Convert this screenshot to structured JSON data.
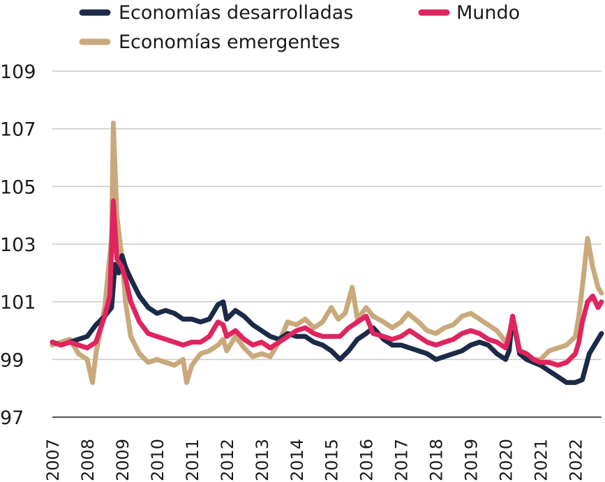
{
  "chart_data": {
    "type": "line",
    "title": "",
    "xlabel": "",
    "ylabel": "",
    "ylim": [
      97,
      110
    ],
    "xlim": [
      2007,
      2022.75
    ],
    "y_ticks": [
      97,
      99,
      101,
      103,
      105,
      107,
      109
    ],
    "x_tick_labels": [
      "2007",
      "2008",
      "2009",
      "2010",
      "2011",
      "2012",
      "2013",
      "2014",
      "2015",
      "2016",
      "2017",
      "2018",
      "2019",
      "2020",
      "2021",
      "2022"
    ],
    "grid": "horizontal",
    "legend_placement": "top",
    "legend": [
      {
        "label": "Economías desarrolladas",
        "series": "desarrolladas"
      },
      {
        "label": "Mundo",
        "series": "mundo"
      },
      {
        "label": "Economías emergentes",
        "series": "emergentes"
      }
    ],
    "series": [
      {
        "name": "Economías desarrolladas",
        "key": "desarrolladas",
        "color": "#1b2a47",
        "x": [
          2007.0,
          2007.25,
          2007.5,
          2007.75,
          2008.0,
          2008.25,
          2008.5,
          2008.7,
          2008.8,
          2008.9,
          2009.0,
          2009.1,
          2009.25,
          2009.5,
          2009.75,
          2010.0,
          2010.25,
          2010.5,
          2010.75,
          2011.0,
          2011.25,
          2011.5,
          2011.75,
          2011.9,
          2012.0,
          2012.25,
          2012.5,
          2012.75,
          2013.0,
          2013.25,
          2013.5,
          2013.75,
          2014.0,
          2014.25,
          2014.5,
          2014.75,
          2015.0,
          2015.25,
          2015.5,
          2015.75,
          2016.0,
          2016.2,
          2016.5,
          2016.75,
          2017.0,
          2017.25,
          2017.5,
          2017.75,
          2018.0,
          2018.25,
          2018.5,
          2018.75,
          2019.0,
          2019.25,
          2019.5,
          2019.75,
          2020.0,
          2020.1,
          2020.2,
          2020.4,
          2020.6,
          2020.8,
          2021.0,
          2021.25,
          2021.5,
          2021.75,
          2022.0,
          2022.2,
          2022.4,
          2022.6,
          2022.75
        ],
        "y": [
          99.6,
          99.5,
          99.6,
          99.7,
          99.8,
          100.2,
          100.5,
          100.8,
          102.3,
          102.0,
          102.6,
          102.2,
          101.8,
          101.2,
          100.8,
          100.6,
          100.7,
          100.6,
          100.4,
          100.4,
          100.3,
          100.4,
          100.9,
          101.0,
          100.4,
          100.7,
          100.5,
          100.2,
          100.0,
          99.8,
          99.7,
          99.9,
          99.8,
          99.8,
          99.6,
          99.5,
          99.3,
          99.0,
          99.3,
          99.7,
          99.9,
          100.1,
          99.7,
          99.5,
          99.5,
          99.4,
          99.3,
          99.2,
          99.0,
          99.1,
          99.2,
          99.3,
          99.5,
          99.6,
          99.5,
          99.2,
          99.0,
          99.3,
          100.5,
          99.2,
          99.0,
          98.9,
          98.8,
          98.6,
          98.4,
          98.2,
          98.2,
          98.3,
          99.2,
          99.6,
          99.9
        ]
      },
      {
        "name": "Mundo",
        "key": "mundo",
        "color": "#e0245e",
        "x": [
          2007.0,
          2007.25,
          2007.5,
          2007.75,
          2008.0,
          2008.25,
          2008.5,
          2008.65,
          2008.75,
          2008.85,
          2009.0,
          2009.1,
          2009.25,
          2009.5,
          2009.75,
          2010.0,
          2010.25,
          2010.5,
          2010.75,
          2011.0,
          2011.25,
          2011.5,
          2011.75,
          2011.9,
          2012.0,
          2012.25,
          2012.5,
          2012.75,
          2013.0,
          2013.25,
          2013.5,
          2013.75,
          2014.0,
          2014.25,
          2014.5,
          2014.75,
          2015.0,
          2015.25,
          2015.5,
          2015.75,
          2016.0,
          2016.2,
          2016.5,
          2016.75,
          2017.0,
          2017.25,
          2017.5,
          2017.75,
          2018.0,
          2018.25,
          2018.5,
          2018.75,
          2019.0,
          2019.25,
          2019.5,
          2019.75,
          2020.0,
          2020.1,
          2020.2,
          2020.4,
          2020.6,
          2020.8,
          2021.0,
          2021.25,
          2021.5,
          2021.75,
          2022.0,
          2022.1,
          2022.2,
          2022.35,
          2022.5,
          2022.65,
          2022.75
        ],
        "y": [
          99.6,
          99.5,
          99.6,
          99.5,
          99.4,
          99.6,
          100.5,
          101.2,
          104.5,
          102.5,
          102.2,
          101.8,
          101.0,
          100.3,
          99.9,
          99.8,
          99.7,
          99.6,
          99.5,
          99.6,
          99.6,
          99.8,
          100.3,
          100.2,
          99.8,
          100.0,
          99.7,
          99.5,
          99.6,
          99.4,
          99.6,
          99.8,
          100.0,
          100.1,
          99.9,
          99.8,
          99.8,
          99.8,
          100.1,
          100.3,
          100.5,
          99.9,
          99.8,
          99.7,
          99.8,
          100.0,
          99.8,
          99.6,
          99.5,
          99.6,
          99.7,
          99.9,
          100.0,
          99.9,
          99.7,
          99.6,
          99.4,
          99.8,
          100.5,
          99.3,
          99.2,
          99.0,
          98.9,
          98.9,
          98.8,
          98.9,
          99.2,
          99.6,
          100.3,
          101.0,
          101.2,
          100.8,
          101.0
        ]
      },
      {
        "name": "Economías emergentes",
        "key": "emergentes",
        "color": "#c9a97b",
        "x": [
          2007.0,
          2007.25,
          2007.5,
          2007.75,
          2008.0,
          2008.15,
          2008.25,
          2008.5,
          2008.6,
          2008.7,
          2008.75,
          2008.85,
          2009.0,
          2009.1,
          2009.25,
          2009.5,
          2009.75,
          2010.0,
          2010.25,
          2010.5,
          2010.75,
          2010.85,
          2011.0,
          2011.25,
          2011.5,
          2011.75,
          2011.9,
          2012.0,
          2012.25,
          2012.5,
          2012.75,
          2013.0,
          2013.25,
          2013.5,
          2013.75,
          2014.0,
          2014.25,
          2014.5,
          2014.75,
          2015.0,
          2015.2,
          2015.4,
          2015.6,
          2015.75,
          2016.0,
          2016.2,
          2016.5,
          2016.75,
          2017.0,
          2017.2,
          2017.5,
          2017.75,
          2018.0,
          2018.25,
          2018.5,
          2018.75,
          2019.0,
          2019.25,
          2019.5,
          2019.75,
          2020.0,
          2020.1,
          2020.2,
          2020.4,
          2020.6,
          2020.8,
          2021.0,
          2021.25,
          2021.5,
          2021.75,
          2022.0,
          2022.1,
          2022.2,
          2022.35,
          2022.5,
          2022.65,
          2022.75
        ],
        "y": [
          99.5,
          99.6,
          99.7,
          99.2,
          99.0,
          98.2,
          99.2,
          100.8,
          102.0,
          103.2,
          107.2,
          104.0,
          102.5,
          101.0,
          99.8,
          99.2,
          98.9,
          99.0,
          98.9,
          98.8,
          99.0,
          98.2,
          98.8,
          99.2,
          99.3,
          99.5,
          99.7,
          99.3,
          99.8,
          99.4,
          99.1,
          99.2,
          99.1,
          99.6,
          100.3,
          100.2,
          100.4,
          100.1,
          100.3,
          100.8,
          100.4,
          100.6,
          101.5,
          100.4,
          100.8,
          100.5,
          100.3,
          100.1,
          100.3,
          100.6,
          100.3,
          100.0,
          99.9,
          100.1,
          100.2,
          100.5,
          100.6,
          100.4,
          100.2,
          100.0,
          99.6,
          99.9,
          100.3,
          99.3,
          99.2,
          99.0,
          99.0,
          99.3,
          99.4,
          99.5,
          99.8,
          100.5,
          101.5,
          103.2,
          102.2,
          101.5,
          101.3
        ]
      }
    ]
  }
}
